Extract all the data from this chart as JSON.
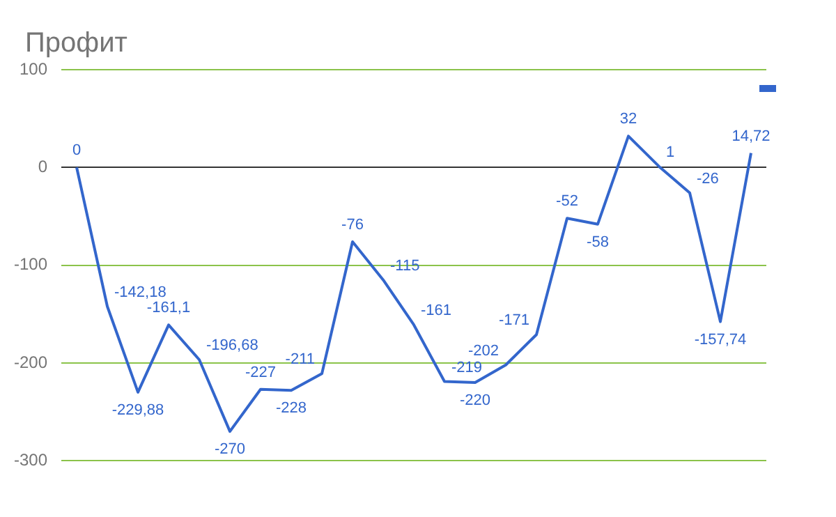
{
  "chart_data": {
    "type": "line",
    "title": "Профит",
    "categories": [
      null,
      null,
      null,
      null,
      null,
      null,
      null,
      null,
      null,
      null,
      null,
      null,
      null,
      null,
      null,
      null,
      null,
      null,
      null,
      null,
      null,
      null,
      null
    ],
    "series": [
      {
        "color": "#3366cc",
        "values": [
          0,
          -142.18,
          -229.88,
          -161.1,
          -196.68,
          -270,
          -227,
          -228,
          -211,
          -76,
          -115,
          -161,
          -219,
          -220,
          -202,
          -171,
          -52,
          -58,
          32,
          1,
          -26,
          -157.74,
          14.72
        ],
        "value_labels": [
          "0",
          "-142,18",
          "-229,88",
          "-161,1",
          "-196,68",
          "-270",
          "-227",
          "-228",
          "-211",
          "-76",
          "-115",
          "-161",
          "-219",
          "-220",
          "-202",
          "-171",
          "-52",
          "-58",
          "32",
          "1",
          "-26",
          "-157,74",
          "14,72"
        ]
      }
    ],
    "ylim": [
      -300,
      100
    ],
    "yticks": [
      -300,
      -200,
      -100,
      0,
      100
    ],
    "grid": "y",
    "marker": "none",
    "line_style": "solid"
  }
}
